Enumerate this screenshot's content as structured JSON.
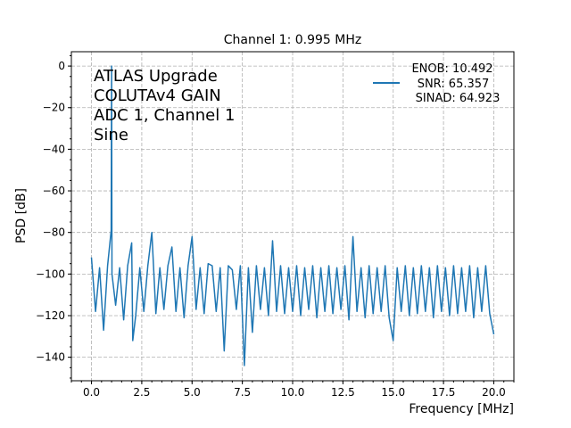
{
  "chart_data": {
    "type": "line",
    "title": "Channel 1: 0.995 MHz",
    "xlabel": "Frequency [MHz]",
    "ylabel": "PSD [dB]",
    "xlim": [
      -1.0,
      21.0
    ],
    "ylim": [
      -151.3,
      6.9
    ],
    "xticks": [
      "0.0",
      "2.5",
      "5.0",
      "7.5",
      "10.0",
      "12.5",
      "15.0",
      "17.5",
      "20.0"
    ],
    "xtick_values": [
      0,
      2.5,
      5,
      7.5,
      10,
      12.5,
      15,
      17.5,
      20
    ],
    "yticks": [
      "0",
      "−20",
      "−40",
      "−60",
      "−80",
      "−100",
      "−120",
      "−140"
    ],
    "ytick_values": [
      0,
      -20,
      -40,
      -60,
      -80,
      -100,
      -120,
      -140
    ],
    "grid": true,
    "grid_style": "dashed",
    "legend_placement": "top-right",
    "annotation_lines": [
      "ATLAS Upgrade",
      "COLUTAv4 GAIN",
      "ADC 1, Channel 1",
      "Sine"
    ],
    "series": [
      {
        "name_lines": [
          "ENOB: 10.492",
          "SNR: 65.357",
          "SINAD: 64.923"
        ],
        "color": "#1f77b4",
        "x": [
          0,
          0.2,
          0.4,
          0.6,
          0.8,
          0.98,
          1.0,
          1.02,
          1.2,
          1.4,
          1.6,
          1.8,
          2.0,
          2.05,
          2.2,
          2.4,
          2.6,
          2.8,
          3.0,
          3.2,
          3.4,
          3.6,
          3.8,
          4.0,
          4.2,
          4.4,
          4.6,
          4.8,
          5.0,
          5.2,
          5.4,
          5.6,
          5.8,
          6.0,
          6.2,
          6.4,
          6.6,
          6.8,
          7.0,
          7.2,
          7.4,
          7.6,
          7.8,
          8.0,
          8.2,
          8.4,
          8.6,
          8.8,
          9.0,
          9.2,
          9.4,
          9.6,
          9.8,
          10.0,
          10.2,
          10.4,
          10.6,
          10.8,
          11.0,
          11.2,
          11.4,
          11.6,
          11.8,
          12.0,
          12.2,
          12.4,
          12.6,
          12.8,
          13.0,
          13.2,
          13.4,
          13.6,
          13.8,
          14.0,
          14.2,
          14.4,
          14.6,
          14.8,
          15.0,
          15.2,
          15.4,
          15.6,
          15.8,
          16.0,
          16.2,
          16.4,
          16.6,
          16.8,
          17.0,
          17.2,
          17.4,
          17.6,
          17.8,
          18.0,
          18.2,
          18.4,
          18.6,
          18.8,
          19.0,
          19.2,
          19.4,
          19.6,
          19.8,
          20.0
        ],
        "y": [
          -92,
          -118,
          -97,
          -127,
          -96,
          -79,
          0,
          -100,
          -115,
          -97,
          -122,
          -96,
          -85,
          -132,
          -120,
          -97,
          -118,
          -96,
          -80,
          -119,
          -97,
          -117,
          -96,
          -87,
          -118,
          -97,
          -121,
          -96,
          -82,
          -117,
          -97,
          -119,
          -95,
          -96,
          -118,
          -97,
          -137,
          -96,
          -98,
          -117,
          -96,
          -144,
          -97,
          -128,
          -96,
          -117,
          -97,
          -120,
          -84,
          -118,
          -96,
          -119,
          -97,
          -118,
          -96,
          -120,
          -97,
          -117,
          -96,
          -121,
          -97,
          -118,
          -96,
          -119,
          -97,
          -117,
          -96,
          -122,
          -82,
          -118,
          -97,
          -121,
          -96,
          -119,
          -97,
          -118,
          -96,
          -121,
          -132,
          -97,
          -118,
          -96,
          -120,
          -97,
          -119,
          -96,
          -118,
          -97,
          -121,
          -96,
          -118,
          -97,
          -120,
          -96,
          -119,
          -97,
          -118,
          -96,
          -121,
          -97,
          -118,
          -96,
          -119,
          -129
        ]
      }
    ]
  }
}
